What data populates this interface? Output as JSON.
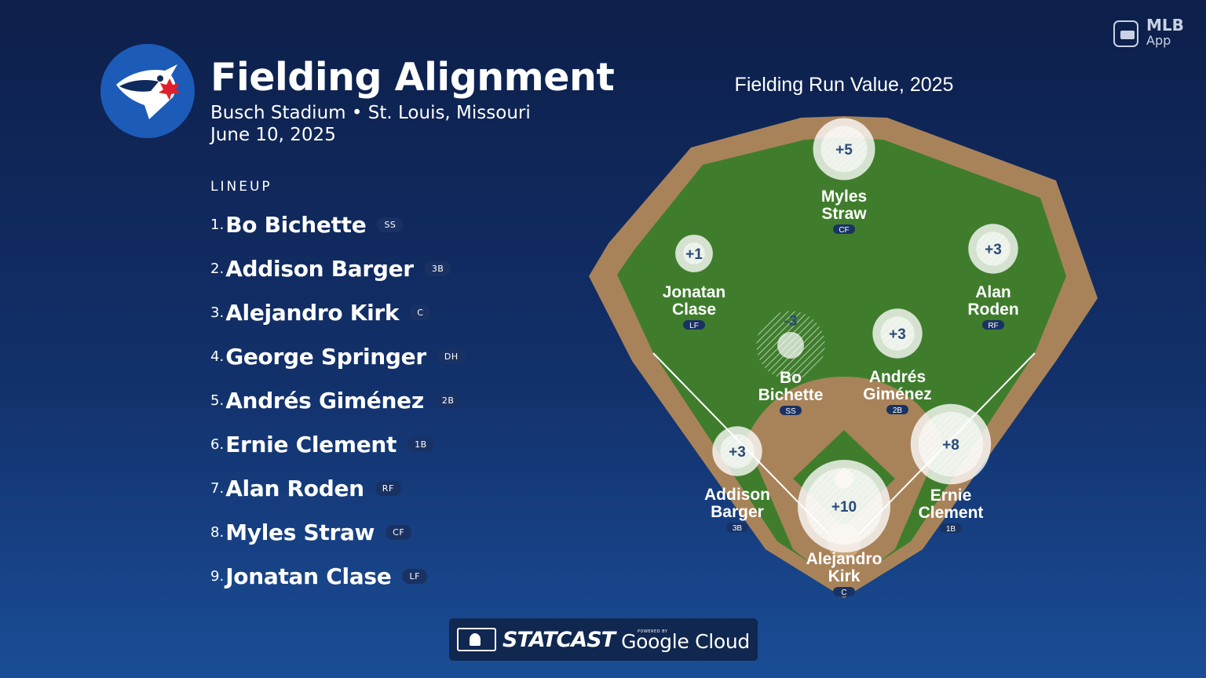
{
  "header": {
    "title": "Fielding Alignment",
    "venue": "Busch Stadium",
    "separator": "•",
    "location": "St. Louis, Missouri",
    "date": "June 10, 2025"
  },
  "brand": {
    "mlb_line1": "MLB",
    "mlb_line2": "App",
    "statcast": "STATCAST",
    "powered_by": "POWERED BY",
    "google_cloud": "Google Cloud"
  },
  "lineup": {
    "heading": "LINEUP",
    "players": [
      {
        "num": "1.",
        "name": "Bo Bichette",
        "pos": "SS"
      },
      {
        "num": "2.",
        "name": "Addison Barger",
        "pos": "3B"
      },
      {
        "num": "3.",
        "name": "Alejandro Kirk",
        "pos": "C"
      },
      {
        "num": "4.",
        "name": "George Springer",
        "pos": "DH"
      },
      {
        "num": "5.",
        "name": "Andrés Giménez",
        "pos": "2B"
      },
      {
        "num": "6.",
        "name": "Ernie Clement",
        "pos": "1B"
      },
      {
        "num": "7.",
        "name": "Alan Roden",
        "pos": "RF"
      },
      {
        "num": "8.",
        "name": "Myles Straw",
        "pos": "CF"
      },
      {
        "num": "9.",
        "name": "Jonatan Clase",
        "pos": "LF"
      }
    ]
  },
  "field": {
    "title": "Fielding Run Value, 2025",
    "fielders": [
      {
        "first": "Myles",
        "last": "Straw",
        "pos": "CF",
        "value": "+5",
        "frv": 5
      },
      {
        "first": "Jonatan",
        "last": "Clase",
        "pos": "LF",
        "value": "+1",
        "frv": 1
      },
      {
        "first": "Alan",
        "last": "Roden",
        "pos": "RF",
        "value": "+3",
        "frv": 3
      },
      {
        "first": "Bo",
        "last": "Bichette",
        "pos": "SS",
        "value": "-3",
        "frv": -3
      },
      {
        "first": "Andrés",
        "last": "Giménez",
        "pos": "2B",
        "value": "+3",
        "frv": 3
      },
      {
        "first": "Addison",
        "last": "Barger",
        "pos": "3B",
        "value": "+3",
        "frv": 3
      },
      {
        "first": "Ernie",
        "last": "Clement",
        "pos": "1B",
        "value": "+8",
        "frv": 8
      },
      {
        "first": "Alejandro",
        "last": "Kirk",
        "pos": "C",
        "value": "+10",
        "frv": 10
      }
    ]
  },
  "colors": {
    "background_top": "#0d1f4a",
    "background_bottom": "#1a4d96",
    "grass": "#3f7d2c",
    "dirt": "#a8835a",
    "badge": "#1a3263",
    "team_blue": "#1d5bb8"
  }
}
